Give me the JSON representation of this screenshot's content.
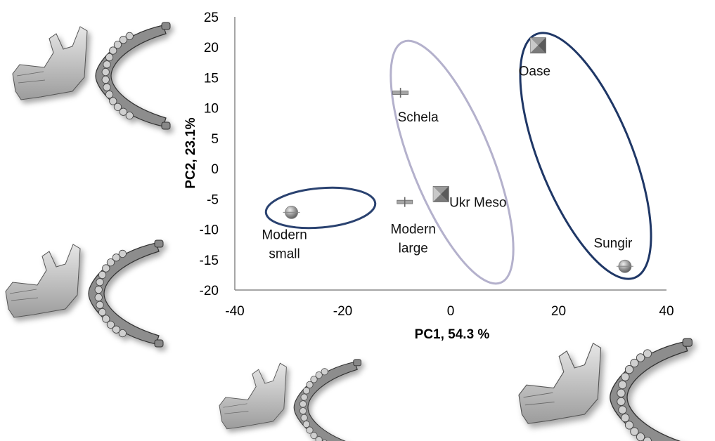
{
  "chart_data": {
    "type": "scatter",
    "title": "",
    "xlabel": "PC1, 54.3 %",
    "ylabel": "PC2, 23.1%",
    "xlim": [
      -40,
      40
    ],
    "ylim": [
      -20,
      25
    ],
    "x_ticks": [
      -40,
      -20,
      0,
      20,
      40
    ],
    "y_ticks": [
      25,
      20,
      15,
      10,
      5,
      0,
      -5,
      -10,
      -15,
      -20
    ],
    "grid": false,
    "legend": "none",
    "points": [
      {
        "label_lines": [
          "Modern",
          "small"
        ],
        "x": -29.5,
        "y": -7.2,
        "marker": "circle"
      },
      {
        "label_lines": [
          "Modern",
          "large"
        ],
        "x": -8.5,
        "y": -5.5,
        "marker": "dash"
      },
      {
        "label_lines": [
          "Schela"
        ],
        "x": -9.3,
        "y": 12.5,
        "marker": "dash"
      },
      {
        "label_lines": [
          "Ukr Meso"
        ],
        "x": -1.8,
        "y": -4.2,
        "marker": "pyramid"
      },
      {
        "label_lines": [
          "Oase"
        ],
        "x": 16.2,
        "y": 20.3,
        "marker": "pyramid"
      },
      {
        "label_lines": [
          "Sungir"
        ],
        "x": 32.3,
        "y": -16.1,
        "marker": "circle"
      }
    ],
    "ellipses": [
      {
        "group": "Modern",
        "color": "#2a4270"
      },
      {
        "group": "Schela / Ukr Meso",
        "color": "#b4b1cc"
      },
      {
        "group": "Oase / Sungir",
        "color": "#1f3766"
      }
    ]
  },
  "icons": [
    "mandible-icon",
    "mandible-icon",
    "mandible-icon",
    "mandible-icon"
  ],
  "colors": {
    "marker": "#8c8c8c",
    "axis": "#888888"
  }
}
